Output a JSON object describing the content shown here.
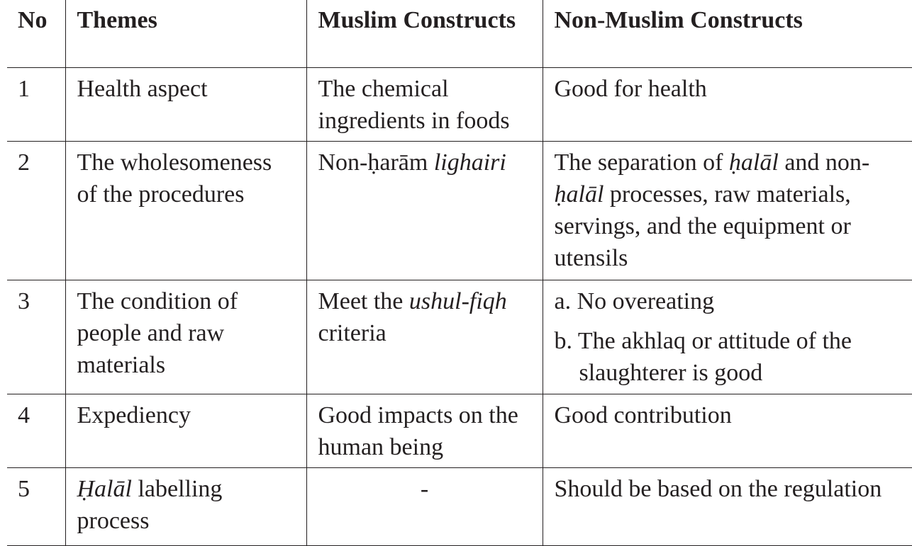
{
  "table": {
    "header": [
      "No",
      "Themes",
      "Muslim Constructs",
      "Non-Muslim Constructs"
    ],
    "rows": [
      [
        1,
        "Health aspect",
        "The chemical ingredients in foods",
        "Good for health"
      ],
      [
        2,
        "The wholesomeness of the procedures",
        [
          "Non-ḥarām ",
          {
            "text": "lighairi",
            "italic": true
          }
        ],
        [
          "The separation of ",
          {
            "text": "ḥalāl",
            "italic": true
          },
          " and non-",
          {
            "text": "ḥalāl",
            "italic": true
          },
          " processes, raw materials, servings, and the equipment or utensils"
        ]
      ],
      [
        3,
        "The condition of people and raw materials",
        [
          "Meet the ",
          {
            "text": "ushul-fiqh",
            "italic": true
          },
          " criteria"
        ],
        {
          "items": [
            "a. No overeating",
            "b. The akhlaq or attitude of the slaughterer is good"
          ]
        }
      ],
      [
        4,
        "Expediency",
        "Good impacts on the human being",
        "Good contribution"
      ],
      [
        5,
        [
          {
            "text": "Ḥalāl",
            "italic": true
          },
          " labelling process"
        ],
        "-",
        "Should be based on the regulation"
      ]
    ]
  }
}
